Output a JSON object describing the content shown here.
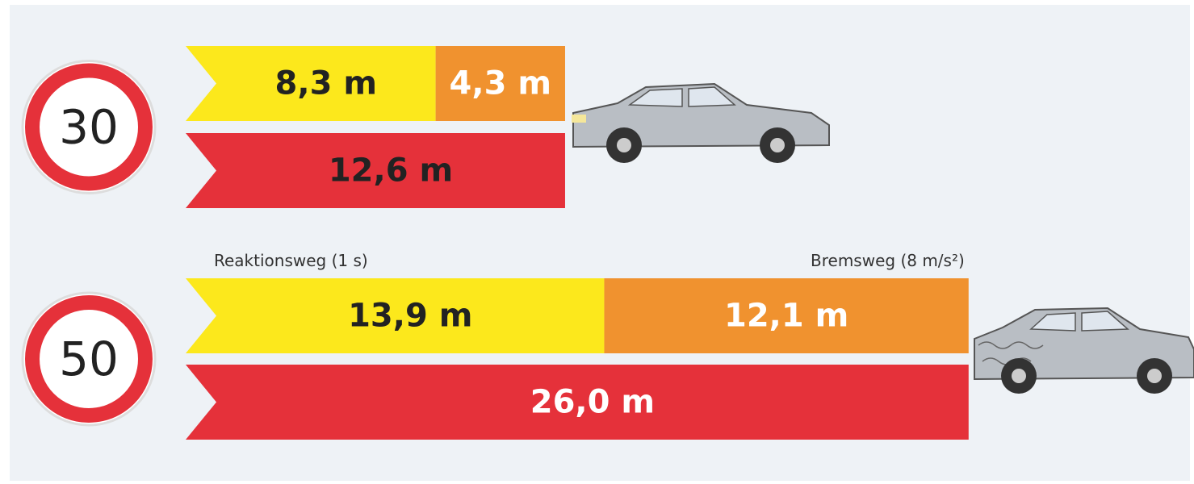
{
  "chart_data": {
    "type": "stacked-bar",
    "categories": [
      "30",
      "50"
    ],
    "series": [
      {
        "name": "Reaktionsweg (1 s)",
        "color": "#fce81c",
        "values": [
          8.3,
          13.9
        ],
        "value_labels": [
          "8,3 m",
          "13,9 m"
        ]
      },
      {
        "name": "Bremsweg (8 m/s²)",
        "color": "#f0922f",
        "values": [
          4.3,
          12.1
        ],
        "value_labels": [
          "4,3 m",
          "12,1 m"
        ]
      }
    ],
    "total": {
      "color": "#e5313a",
      "values": [
        12.6,
        26.0
      ],
      "value_labels": [
        "12,6 m",
        "26,0 m"
      ]
    }
  }
}
